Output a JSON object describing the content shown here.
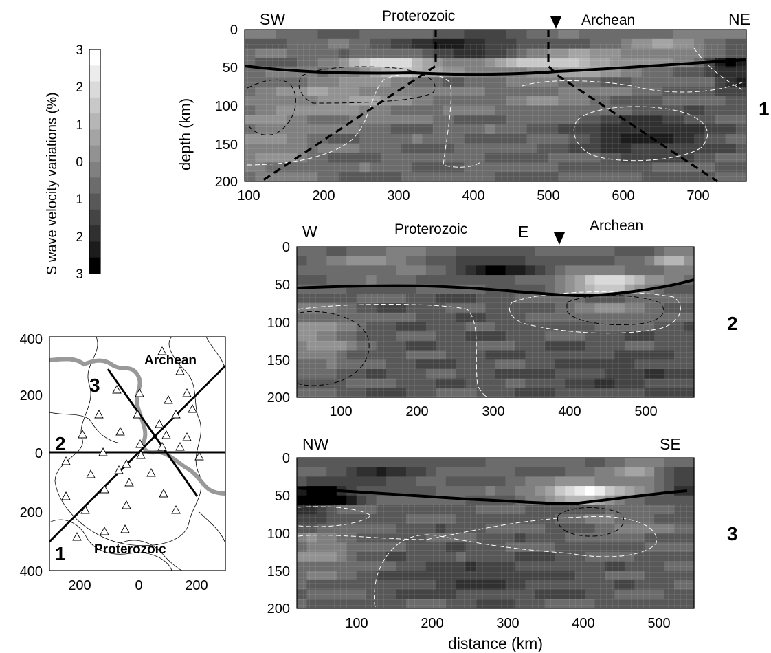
{
  "colorbar": {
    "label": "S wave velocity variations (%)",
    "ticks": [
      "3",
      "2",
      "1",
      "0",
      "1",
      "2",
      "3"
    ],
    "levels": [
      "#ffffff",
      "#ececec",
      "#dadada",
      "#c8c8c8",
      "#b6b6b6",
      "#a4a4a4",
      "#929292",
      "#808080",
      "#6c6c6c",
      "#585858",
      "#444444",
      "#303030",
      "#1c1c1c",
      "#000000"
    ]
  },
  "sections": [
    {
      "number": "1",
      "end_left": "SW",
      "end_right": "NE",
      "region_left": "Proterozoic",
      "region_right": "Archean",
      "ylabel": "depth (km)",
      "yticks": [
        "0",
        "50",
        "100",
        "150",
        "200"
      ],
      "xticks": [
        "100",
        "200",
        "300",
        "400",
        "500",
        "600",
        "700"
      ],
      "marker_x": 510,
      "xlim": [
        90,
        760
      ]
    },
    {
      "number": "2",
      "end_left": "W",
      "end_right": "E",
      "region_left": "Proterozoic",
      "region_right": "Archean",
      "yticks": [
        "0",
        "50",
        "100",
        "150",
        "200"
      ],
      "xticks": [
        "100",
        "200",
        "300",
        "400",
        "500"
      ],
      "marker_x": 392,
      "xlim": [
        45,
        565
      ]
    },
    {
      "number": "3",
      "end_left": "NW",
      "end_right": "SE",
      "yticks": [
        "0",
        "50",
        "100",
        "150",
        "200"
      ],
      "xticks": [
        "100",
        "200",
        "300",
        "400",
        "500"
      ],
      "xlabel": "distance (km)",
      "xlim": [
        20,
        545
      ]
    }
  ],
  "map": {
    "region_top": "Archean",
    "region_bottom": "Proterozoic",
    "yticks": [
      "400",
      "200",
      "0",
      "200",
      "400"
    ],
    "xticks": [
      "200",
      "0",
      "200"
    ],
    "profile_labels": [
      "1",
      "2",
      "3"
    ]
  }
}
